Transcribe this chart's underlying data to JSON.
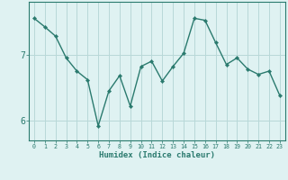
{
  "x": [
    0,
    1,
    2,
    3,
    4,
    5,
    6,
    7,
    8,
    9,
    10,
    11,
    12,
    13,
    14,
    15,
    16,
    17,
    18,
    19,
    20,
    21,
    22,
    23
  ],
  "y": [
    7.55,
    7.42,
    7.28,
    6.95,
    6.75,
    6.62,
    5.92,
    6.45,
    6.68,
    6.22,
    6.82,
    6.9,
    6.6,
    6.82,
    7.02,
    7.55,
    7.52,
    7.18,
    6.85,
    6.95,
    6.78,
    6.7,
    6.75,
    6.38
  ],
  "xlabel": "Humidex (Indice chaleur)",
  "ylim": [
    5.7,
    7.8
  ],
  "xlim": [
    -0.5,
    23.5
  ],
  "yticks": [
    6,
    7
  ],
  "ytick_labels": [
    "6",
    "7"
  ],
  "xticks": [
    0,
    1,
    2,
    3,
    4,
    5,
    6,
    7,
    8,
    9,
    10,
    11,
    12,
    13,
    14,
    15,
    16,
    17,
    18,
    19,
    20,
    21,
    22,
    23
  ],
  "line_color": "#2a7a6e",
  "marker_color": "#2a7a6e",
  "bg_color": "#dff2f2",
  "grid_color": "#b8d8d8",
  "axis_color": "#2a7a6e",
  "tick_color": "#2a7a6e",
  "label_color": "#2a7a6e"
}
